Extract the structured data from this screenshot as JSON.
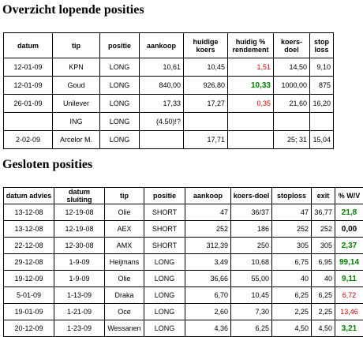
{
  "open_positions": {
    "title": "Overzicht lopende posities",
    "headers": [
      "datum",
      "tip",
      "positie",
      "aankoop",
      "huidige koers",
      "huidig % rendement",
      "koers-doel",
      "stop loss"
    ],
    "rows": [
      {
        "datum": "12-01-09",
        "tip": "KPN",
        "positie": "LONG",
        "aankoop": "10,61",
        "huidige_koers": "10,45",
        "rendement": "1,51",
        "rendement_color": "red",
        "koers_doel": "14,50",
        "stop_loss": "9,10"
      },
      {
        "datum": "12-01-09",
        "tip": "Goud",
        "positie": "LONG",
        "aankoop": "840,00",
        "huidige_koers": "926,80",
        "rendement": "10,33",
        "rendement_color": "green",
        "koers_doel": "1000,00",
        "stop_loss": "875"
      },
      {
        "datum": "26-01-09",
        "tip": "Unilever",
        "positie": "LONG",
        "aankoop": "17,33",
        "huidige_koers": "17,27",
        "rendement": "0,35",
        "rendement_color": "red",
        "koers_doel": "21,60",
        "stop_loss": "16,20"
      },
      {
        "datum": "",
        "tip": "ING",
        "positie": "LONG",
        "aankoop": "(4.50)!?",
        "huidige_koers": "",
        "rendement": "",
        "rendement_color": "black",
        "koers_doel": "",
        "stop_loss": ""
      },
      {
        "datum": "2-02-09",
        "tip": "Arcelor M.",
        "positie": "LONG",
        "aankoop": "",
        "huidige_koers": "17,71",
        "rendement": "",
        "rendement_color": "black",
        "koers_doel": "25; 31",
        "stop_loss": "15,04"
      }
    ]
  },
  "closed_positions": {
    "title": "Gesloten posities",
    "headers": [
      "datum advies",
      "datum sluiting",
      "tip",
      "positie",
      "aankoop",
      "koers-doel",
      "stoploss",
      "exit",
      "% W/V"
    ],
    "rows": [
      {
        "advies": "13-12-08",
        "sluiting": "12-19-08",
        "tip": "Olie",
        "positie": "SHORT",
        "aankoop": "47",
        "koers_doel": "36/37",
        "stoploss": "47",
        "exit": "36,77",
        "wv": "21,8",
        "wv_color": "green"
      },
      {
        "advies": "13-12-08",
        "sluiting": "12-19-08",
        "tip": "AEX",
        "positie": "SHORT",
        "aankoop": "252",
        "koers_doel": "186",
        "stoploss": "252",
        "exit": "252",
        "wv": "0,00",
        "wv_color": "black"
      },
      {
        "advies": "22-12-08",
        "sluiting": "12-30-08",
        "tip": "AMX",
        "positie": "SHORT",
        "aankoop": "312,39",
        "koers_doel": "250",
        "stoploss": "305",
        "exit": "305",
        "wv": "2,37",
        "wv_color": "green"
      },
      {
        "advies": "29-12-08",
        "sluiting": "1-9-09",
        "tip": "Heijmans",
        "positie": "LONG",
        "aankoop": "3,49",
        "koers_doel": "10,68",
        "stoploss": "6,75",
        "exit": "6,95",
        "wv": "99,14",
        "wv_color": "green"
      },
      {
        "advies": "19-12-09",
        "sluiting": "1-9-09",
        "tip": "Olie",
        "positie": "LONG",
        "aankoop": "36,66",
        "koers_doel": "55,00",
        "stoploss": "40",
        "exit": "40",
        "wv": "9,11",
        "wv_color": "green"
      },
      {
        "advies": "5-01-09",
        "sluiting": "1-13-09",
        "tip": "Draka",
        "positie": "LONG",
        "aankoop": "6,70",
        "koers_doel": "10,45",
        "stoploss": "6,25",
        "exit": "6,25",
        "wv": "6,72",
        "wv_color": "red"
      },
      {
        "advies": "19-01-09",
        "sluiting": "1-21-09",
        "tip": "Oce",
        "positie": "LONG",
        "aankoop": "2,60",
        "koers_doel": "7,30",
        "stoploss": "2,25",
        "exit": "2,25",
        "wv": "13,46",
        "wv_color": "red"
      },
      {
        "advies": "20-12-09",
        "sluiting": "1-23-09",
        "tip": "Wessanen",
        "positie": "LONG",
        "aankoop": "4,36",
        "koers_doel": "6,25",
        "stoploss": "4,50",
        "exit": "4,50",
        "wv": "3,21",
        "wv_color": "green"
      }
    ]
  }
}
